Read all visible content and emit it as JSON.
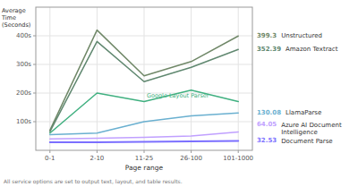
{
  "chart_data": {
    "type": "line",
    "y_label": "Average\nTime\n(Seconds)",
    "x_label": "Page range",
    "footnote": "All service options are set to output text, layout, and table results.",
    "categories": [
      "0-1",
      "2-10",
      "11-25",
      "26-100",
      "101-1000"
    ],
    "ylim": [
      0,
      500
    ],
    "yticks": [
      {
        "value": 100,
        "label": "100s"
      },
      {
        "value": 200,
        "label": "200s"
      },
      {
        "value": 300,
        "label": "300s"
      },
      {
        "value": 400,
        "label": "400s"
      }
    ],
    "grid": true,
    "series": [
      {
        "name": "Document Parse",
        "color": "#7b6fff",
        "values": [
          28,
          28,
          30,
          31,
          32.53
        ],
        "value_labels": [
          null,
          null,
          null,
          null,
          "32.53"
        ]
      },
      {
        "name": "Azure AI Document\nIntelligence",
        "color": "#c0a0ff",
        "values": [
          40,
          42,
          45,
          50,
          64.05
        ],
        "value_labels": [
          null,
          null,
          null,
          null,
          "64.05"
        ]
      },
      {
        "name": "LlamaParse",
        "color": "#6ab0d0",
        "values": [
          55,
          60,
          100,
          120,
          130.08
        ],
        "value_labels": [
          null,
          null,
          null,
          null,
          "130.08"
        ]
      },
      {
        "name": "Google Layout Parser",
        "color": "#40b080",
        "values": [
          60,
          200,
          170,
          210,
          170
        ],
        "annotation": {
          "x": "11-25",
          "y": 175
        }
      },
      {
        "name": "Amazon Textract",
        "color": "#608870",
        "values": [
          65,
          380,
          240,
          290,
          352.39
        ],
        "value_labels": [
          null,
          null,
          null,
          null,
          "352.39"
        ]
      },
      {
        "name": "Unstructured",
        "color": "#708868",
        "values": [
          70,
          420,
          260,
          310,
          399.3
        ],
        "value_labels": [
          null,
          null,
          null,
          null,
          "399.3"
        ]
      }
    ]
  }
}
